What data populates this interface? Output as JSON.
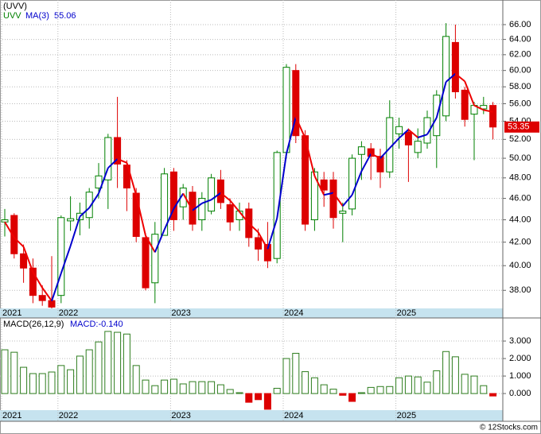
{
  "chart_data": [
    {
      "type": "candlestick",
      "title": "(UVV)",
      "name": "UVV",
      "log": true,
      "grid": true,
      "up_color": "#008000",
      "down_color": "#dd0000",
      "categories": [
        "2021",
        null,
        null,
        null,
        null,
        null,
        "2022",
        null,
        null,
        null,
        null,
        null,
        null,
        null,
        null,
        null,
        null,
        null,
        "2023",
        null,
        null,
        null,
        null,
        null,
        null,
        null,
        null,
        null,
        null,
        null,
        "2024",
        null,
        null,
        null,
        null,
        null,
        null,
        null,
        null,
        null,
        null,
        null,
        "2025",
        null,
        null,
        null,
        null,
        null,
        null,
        null,
        null,
        null,
        null
      ],
      "open": [
        43.8,
        44.4,
        41.0,
        39.8,
        37.6,
        37.2,
        37.6,
        43.9,
        44.0,
        44.2,
        47.0,
        47.8,
        52.2,
        49.3,
        46.5,
        42.4,
        38.6,
        42.6,
        48.6,
        45.2,
        46.6,
        44.0,
        44.8,
        47.8,
        45.4,
        44.0,
        45.0,
        42.4,
        41.8,
        40.6,
        50.6,
        60.0,
        52.4,
        44.0,
        47.8,
        47.8,
        44.6,
        45.0,
        50.4,
        51.0,
        50.2,
        48.6,
        52.6,
        52.8,
        50.6,
        51.6,
        52.4,
        54.6,
        63.6,
        57.6,
        54.8,
        55.4,
        55.8
      ],
      "high": [
        45.0,
        44.6,
        41.8,
        40.6,
        38.4,
        40.8,
        44.4,
        46.2,
        45.6,
        47.0,
        49.5,
        52.6,
        56.8,
        49.8,
        47.0,
        42.8,
        43.8,
        49.0,
        49.0,
        47.4,
        47.2,
        46.6,
        48.4,
        48.8,
        46.0,
        45.6,
        45.6,
        43.2,
        43.8,
        50.8,
        60.8,
        60.8,
        53.0,
        49.0,
        48.6,
        48.6,
        45.6,
        50.4,
        51.8,
        51.6,
        51.0,
        56.4,
        54.4,
        53.2,
        53.2,
        55.2,
        57.6,
        66.2,
        66.0,
        58.0,
        56.2,
        56.8,
        56.2
      ],
      "low": [
        42.5,
        40.6,
        38.6,
        37.0,
        36.8,
        36.6,
        37.0,
        43.0,
        42.6,
        43.2,
        46.0,
        45.0,
        47.0,
        44.8,
        42.0,
        38.0,
        37.0,
        42.6,
        43.0,
        44.0,
        43.0,
        43.0,
        44.5,
        45.0,
        43.0,
        43.0,
        41.6,
        40.4,
        39.8,
        40.2,
        50.0,
        51.6,
        43.0,
        43.0,
        45.2,
        43.2,
        42.0,
        44.4,
        47.8,
        47.8,
        47.0,
        48.0,
        51.0,
        47.6,
        50.0,
        51.0,
        49.0,
        54.0,
        56.6,
        53.4,
        49.8,
        54.8,
        52.0
      ],
      "close": [
        44.0,
        41.0,
        39.8,
        37.6,
        37.2,
        36.7,
        44.2,
        44.1,
        44.6,
        46.6,
        48.2,
        52.2,
        49.4,
        47.0,
        42.5,
        38.2,
        42.7,
        48.4,
        44.0,
        47.0,
        43.6,
        46.0,
        48.0,
        45.6,
        43.8,
        44.8,
        42.4,
        41.4,
        40.4,
        50.6,
        60.4,
        52.4,
        43.6,
        48.6,
        46.8,
        44.2,
        44.8,
        50.0,
        51.2,
        50.2,
        48.6,
        54.4,
        53.4,
        51.4,
        51.8,
        54.4,
        57.0,
        64.4,
        57.4,
        54.2,
        55.8,
        55.8,
        53.35
      ],
      "series": [
        {
          "name": "MA(3)",
          "color": "#0000cc",
          "down_color": "#ee0000",
          "values": [
            43.8,
            42.4,
            41.6,
            39.47,
            38.2,
            37.17,
            39.37,
            41.67,
            44.3,
            45.1,
            46.47,
            49.0,
            49.93,
            49.53,
            46.3,
            42.57,
            41.13,
            43.1,
            45.03,
            46.47,
            44.87,
            45.53,
            45.87,
            46.53,
            45.8,
            44.73,
            43.67,
            42.87,
            41.4,
            44.13,
            50.47,
            54.47,
            52.13,
            48.2,
            46.33,
            46.53,
            45.27,
            46.33,
            48.67,
            50.47,
            50.0,
            51.07,
            52.13,
            53.07,
            52.2,
            52.53,
            54.4,
            58.6,
            59.6,
            58.67,
            55.8,
            55.27,
            55.06
          ]
        }
      ],
      "ylim": [
        36.6,
        68.1
      ],
      "yticks": [
        {
          "value": 38,
          "label": "38.00"
        },
        {
          "value": 40,
          "label": "40.00"
        },
        {
          "value": 42,
          "label": "42.00"
        },
        {
          "value": 44,
          "label": "44.00"
        },
        {
          "value": 46,
          "label": "46.00"
        },
        {
          "value": 48,
          "label": "48.00"
        },
        {
          "value": 50,
          "label": "50.00"
        },
        {
          "value": 52,
          "label": "52.00"
        },
        {
          "value": 54,
          "label": "54.00"
        },
        {
          "value": 56,
          "label": "56.00"
        },
        {
          "value": 58,
          "label": "58.00"
        },
        {
          "value": 60,
          "label": "60.00"
        },
        {
          "value": 62,
          "label": "62.00"
        },
        {
          "value": 64,
          "label": "64.00"
        },
        {
          "value": 66,
          "label": "66.00"
        }
      ]
    },
    {
      "type": "bar",
      "title": "MACD(26,12,9)",
      "last_label": "MACD:-0.140",
      "grid": true,
      "up_color": "#2e7d1e",
      "down_color": "#dd0000",
      "values": [
        2.5,
        2.36,
        1.5,
        1.14,
        1.14,
        1.23,
        1.6,
        1.36,
        2.14,
        2.5,
        2.95,
        3.55,
        3.5,
        3.4,
        1.6,
        0.77,
        0.45,
        0.77,
        0.82,
        0.55,
        0.68,
        0.68,
        0.68,
        0.5,
        0.23,
        0.05,
        -0.5,
        -0.35,
        -0.9,
        0.3,
        2.0,
        2.3,
        1.25,
        0.9,
        0.5,
        0.25,
        -0.1,
        -0.45,
        0.05,
        0.35,
        0.4,
        0.4,
        0.9,
        1.0,
        0.95,
        0.65,
        1.3,
        2.4,
        2.1,
        1.1,
        1.0,
        0.45,
        -0.14
      ],
      "ylim": [
        -0.95,
        4.32
      ],
      "yticks": [
        {
          "value": 0,
          "label": "0.000"
        },
        {
          "value": 1,
          "label": "1.000"
        },
        {
          "value": 2,
          "label": "2.000"
        },
        {
          "value": 3,
          "label": "3.000"
        }
      ]
    }
  ],
  "footer": "© 12Stocks.com"
}
